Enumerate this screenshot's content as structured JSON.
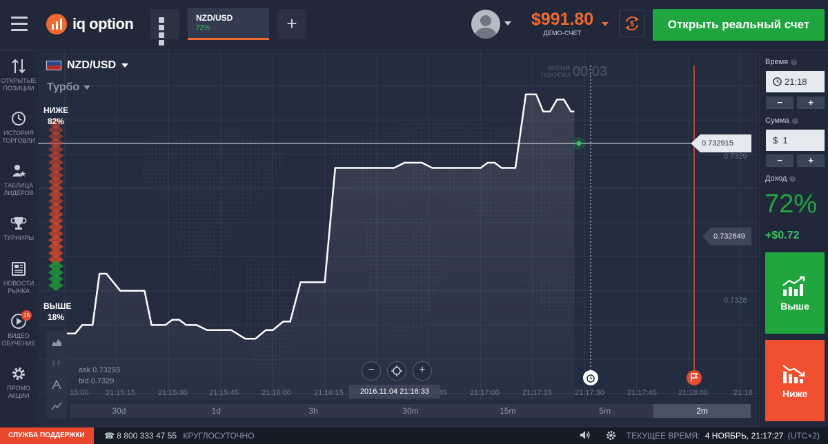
{
  "topbar": {
    "logo_text": "iq option",
    "asset_tab": {
      "name": "NZD/USD",
      "payout": "72%"
    },
    "add_symbol": "+",
    "balance": {
      "amount": "$991.80",
      "label": "ДЕМО-СЧЕТ"
    },
    "real_account_button": "Открыть реальный счет"
  },
  "sidebar": {
    "items": [
      {
        "icon": "arrows-updown-icon",
        "label": "ОТКРЫТЫЕ ПОЗИЦИИ"
      },
      {
        "icon": "history-icon",
        "label": "ИСТОРИЯ ТОРГОВЛИ"
      },
      {
        "icon": "leaders-icon",
        "label": "ТАБЛИЦА ЛИДЕРОВ"
      },
      {
        "icon": "trophy-icon",
        "label": "ТУРНИРЫ"
      },
      {
        "icon": "news-icon",
        "label": "НОВОСТИ РЫНКА"
      },
      {
        "icon": "play-icon",
        "label": "ВИДЕО ОБУЧЕНИЕ",
        "badge": "16"
      },
      {
        "icon": "gear-icon",
        "label": "ПРОМО АКЦИИ"
      }
    ]
  },
  "chart": {
    "asset": "NZD/USD",
    "mode": "Турбо",
    "sentiment_low": {
      "label": "НИЖЕ",
      "value": "82%"
    },
    "sentiment_high": {
      "label": "ВЫШЕ",
      "value": "18%"
    },
    "buy_time_label": "ВРЕМЯ ПОКУПКИ",
    "buy_time_value": "00:03",
    "ask": "ask 0.73293",
    "bid": "bid 0.7329",
    "current_price": "0.732915",
    "target_price": "0.732849",
    "y_ticks": [
      "0.7329",
      "0.7328"
    ],
    "time_ticks": [
      "15:00",
      "21:15:15",
      "21:15:30",
      "21:15:45",
      "21:16:00",
      "21:16:15",
      "21:16:30",
      "21:16:45",
      "21:17:00",
      "21:17:15",
      "21:17:30",
      "21:17:45",
      "21:18:00",
      "21:18"
    ],
    "cursor_time": "2016.11.04 21:16:33",
    "zoom_out": "−",
    "zoom_in": "+",
    "periods": [
      "30d",
      "1d",
      "3h",
      "30m",
      "15m",
      "5m",
      "2m"
    ],
    "active_period": "2m",
    "colors": {
      "line": "#ffffff",
      "expiry_line": "#e8492e",
      "call": "#20a63f",
      "put": "#f0502f"
    }
  },
  "chart_data": {
    "type": "line",
    "title": "",
    "xlabel": "",
    "ylabel": "",
    "x": [
      "21:15:00",
      "21:15:03",
      "21:15:05",
      "21:15:08",
      "21:15:10",
      "21:15:12",
      "21:15:14",
      "21:15:16",
      "21:15:19",
      "21:15:21",
      "21:15:23",
      "21:15:25",
      "21:15:27",
      "21:15:29",
      "21:15:31",
      "21:15:33",
      "21:15:35",
      "21:15:38",
      "21:15:41",
      "21:15:45",
      "21:15:48",
      "21:15:52",
      "21:15:55",
      "21:15:58",
      "21:16:00",
      "21:16:03",
      "21:16:05",
      "21:16:08",
      "21:16:11",
      "21:16:15",
      "21:16:18",
      "21:16:20",
      "21:16:22",
      "21:16:24",
      "21:16:26",
      "21:16:28",
      "21:16:30",
      "21:16:35",
      "21:16:38",
      "21:16:40",
      "21:16:43",
      "21:16:46",
      "21:16:50",
      "21:16:55",
      "21:17:00",
      "21:17:02",
      "21:17:04",
      "21:17:06",
      "21:17:10",
      "21:17:13",
      "21:17:16",
      "21:17:18",
      "21:17:20",
      "21:17:22",
      "21:17:24",
      "21:17:26",
      "21:17:27"
    ],
    "values": [
      0.732785,
      0.732785,
      0.73279,
      0.73279,
      0.73282,
      0.73282,
      0.732815,
      0.73281,
      0.73281,
      0.73281,
      0.73281,
      0.73279,
      0.73279,
      0.73279,
      0.732793,
      0.732793,
      0.73279,
      0.73279,
      0.732787,
      0.732787,
      0.732787,
      0.732782,
      0.732782,
      0.732787,
      0.732787,
      0.732792,
      0.732792,
      0.732815,
      0.732815,
      0.732815,
      0.732882,
      0.732882,
      0.732882,
      0.732882,
      0.732882,
      0.732882,
      0.732882,
      0.732882,
      0.732885,
      0.732885,
      0.732885,
      0.732882,
      0.732882,
      0.732882,
      0.732882,
      0.732885,
      0.732885,
      0.732882,
      0.732882,
      0.732925,
      0.732925,
      0.732915,
      0.732915,
      0.732922,
      0.732922,
      0.732915,
      0.732915
    ],
    "ylim": [
      0.73273,
      0.73295
    ],
    "grid": true
  },
  "rpanel": {
    "time_label": "Время",
    "time_value": "21:18",
    "amount_label": "Сумма",
    "amount_value": "1",
    "currency_symbol": "$",
    "minus": "−",
    "plus": "+",
    "profit_label": "Доход",
    "profit_pct": "72%",
    "profit_abs": "+$0.72",
    "call_label": "Выше",
    "put_label": "Ниже"
  },
  "footer": {
    "support": "СЛУЖБА ПОДДЕРЖКИ",
    "phone": "8 800 333 47 55",
    "hours": "КРУГЛОСУТОЧНО",
    "time_label": "ТЕКУЩЕЕ ВРЕМЯ:",
    "time_value": "4 НОЯБРЬ, 21:17:27",
    "timezone": "(UTC+2)"
  }
}
